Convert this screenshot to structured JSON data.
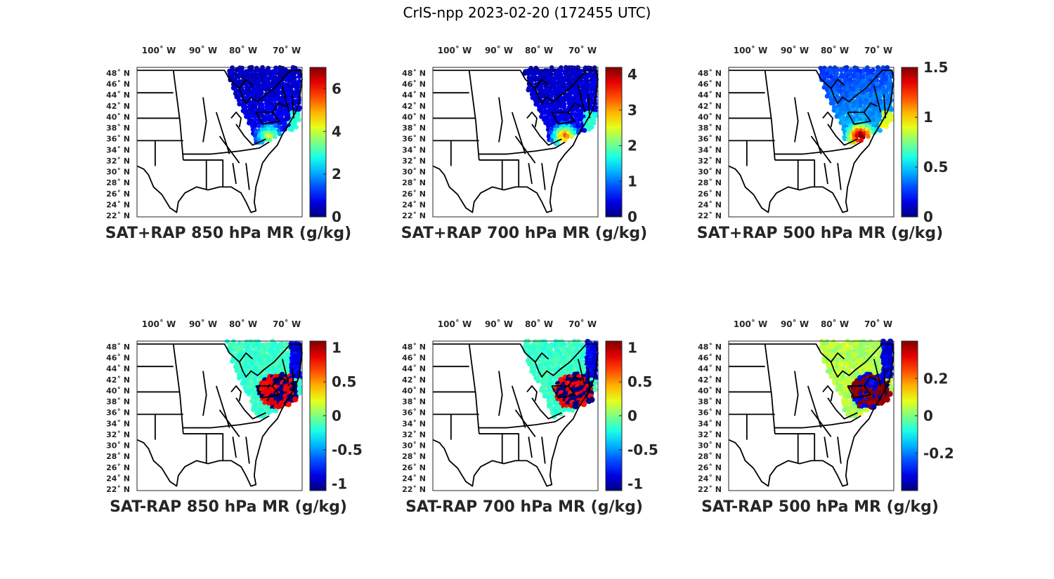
{
  "title": "CrIS-npp 2023-02-20 (172455 UTC)",
  "lon_labels": [
    "100˚ W",
    "90˚ W",
    "80˚ W",
    "70˚ W"
  ],
  "lat_labels": [
    "48˚ N",
    "46˚ N",
    "44˚ N",
    "42˚ N",
    "40˚ N",
    "38˚ N",
    "36˚ N",
    "34˚ N",
    "32˚ N",
    "30˚ N",
    "28˚ N",
    "26˚ N",
    "24˚ N",
    "22˚ N"
  ],
  "colormap": "jet",
  "panels": [
    {
      "title": "SAT+RAP 850 hPa MR (g/kg)",
      "type": "sum",
      "clim": [
        0,
        7
      ],
      "ticks": [
        "0",
        "2",
        "4",
        "6"
      ],
      "tick_values": [
        0,
        2,
        4,
        6
      ]
    },
    {
      "title": "SAT+RAP 700 hPa MR (g/kg)",
      "type": "sum",
      "clim": [
        0,
        4.2
      ],
      "ticks": [
        "0",
        "1",
        "2",
        "3",
        "4"
      ],
      "tick_values": [
        0,
        1,
        2,
        3,
        4
      ]
    },
    {
      "title": "SAT+RAP 500 hPa MR (g/kg)",
      "type": "sum",
      "clim": [
        0,
        1.5
      ],
      "ticks": [
        "0",
        "0.5",
        "1",
        "1.5"
      ],
      "tick_values": [
        0,
        0.5,
        1,
        1.5
      ]
    },
    {
      "title": "SAT-RAP 850 hPa MR (g/kg)",
      "type": "diff",
      "clim": [
        -1.1,
        1.1
      ],
      "ticks": [
        "-1",
        "-0.5",
        "0",
        "0.5",
        "1"
      ],
      "tick_values": [
        -1,
        -0.5,
        0,
        0.5,
        1
      ]
    },
    {
      "title": "SAT-RAP 700 hPa MR (g/kg)",
      "type": "diff",
      "clim": [
        -1.1,
        1.1
      ],
      "ticks": [
        "-1",
        "-0.5",
        "0",
        "0.5",
        "1"
      ],
      "tick_values": [
        -1,
        -0.5,
        0,
        0.5,
        1
      ]
    },
    {
      "title": "SAT-RAP 500 hPa MR (g/kg)",
      "type": "diff",
      "clim": [
        -0.4,
        0.4
      ],
      "ticks": [
        "-0.2",
        "0",
        "0.2"
      ],
      "tick_values": [
        -0.2,
        0,
        0.2
      ]
    }
  ]
}
